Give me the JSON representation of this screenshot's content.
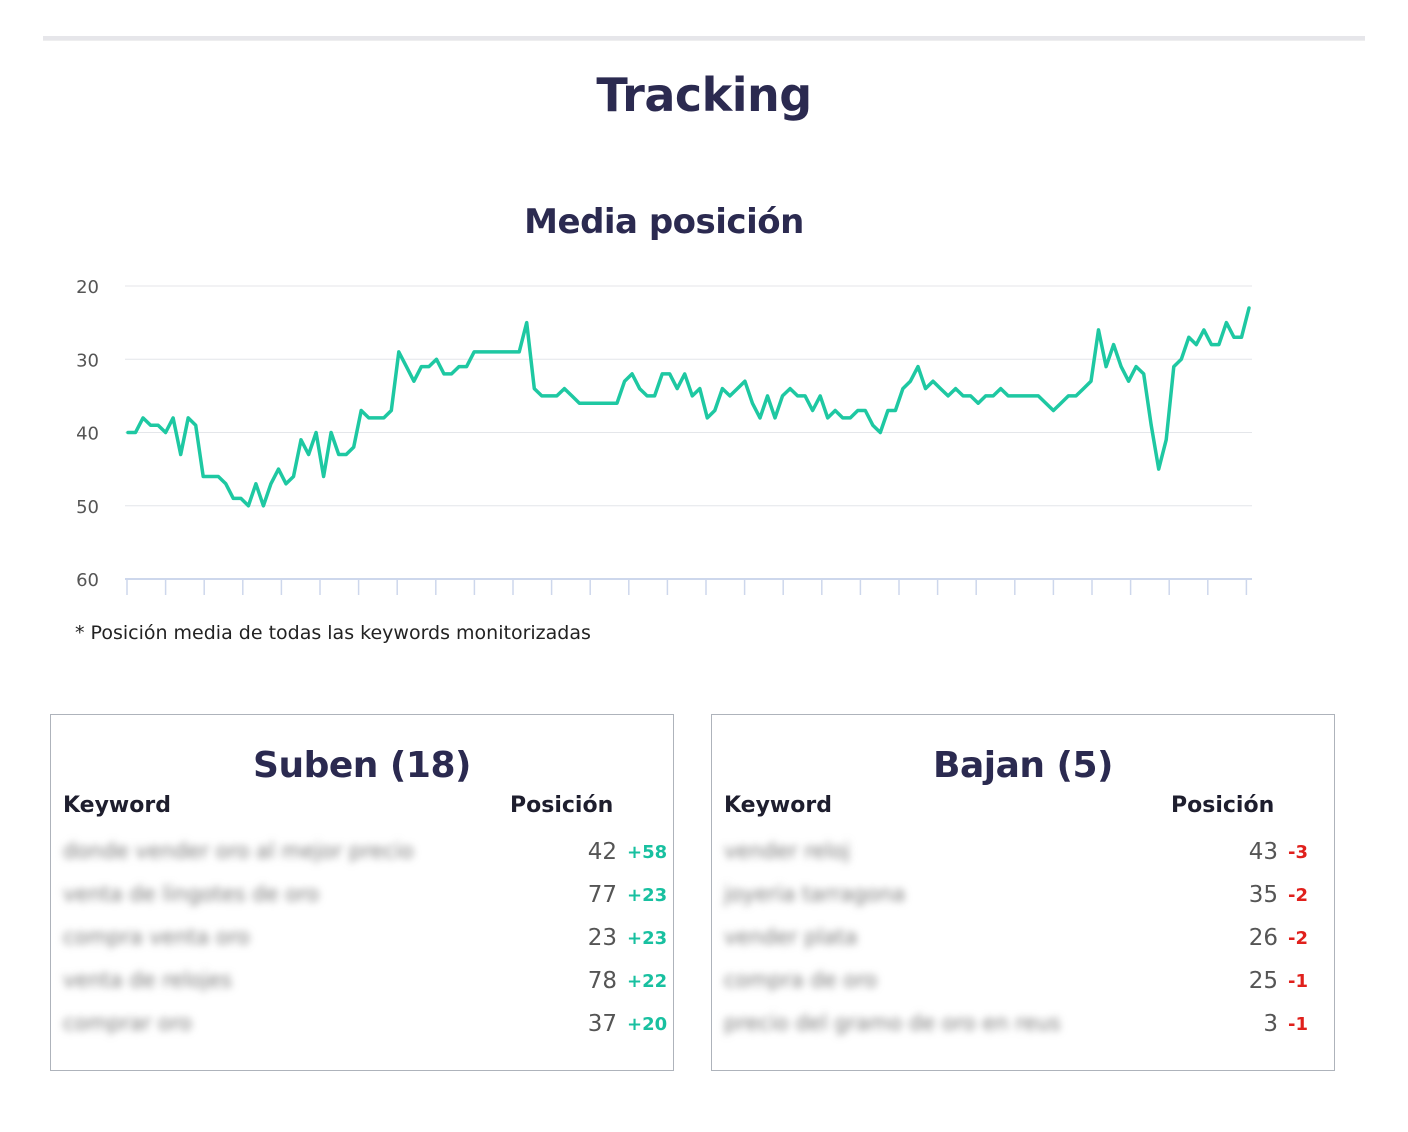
{
  "page": {
    "title": "Tracking"
  },
  "chart_section": {
    "title": "Media posición",
    "footnote": "* Posición media de todas las keywords monitorizadas"
  },
  "colors": {
    "line": "#1ec8a2",
    "up": "#18c0a0",
    "down": "#e0201c",
    "heading": "#2b2a50"
  },
  "chart_data": {
    "type": "line",
    "title": "Media posición",
    "y_ticks": [
      "20",
      "30",
      "40",
      "50",
      "60"
    ],
    "ylim": [
      20,
      60
    ],
    "y_inverted": true,
    "grid": true,
    "series": [
      {
        "values": [
          40,
          40,
          38,
          39,
          39,
          40,
          38,
          43,
          38,
          39,
          46,
          46,
          46,
          47,
          49,
          49,
          50,
          47,
          50,
          47,
          45,
          47,
          46,
          41,
          43,
          40,
          46,
          40,
          43,
          43,
          42,
          37,
          38,
          38,
          38,
          37,
          29,
          31,
          33,
          31,
          31,
          30,
          32,
          32,
          31,
          31,
          29,
          29,
          29,
          29,
          29,
          29,
          29,
          25,
          34,
          35,
          35,
          35,
          34,
          35,
          36,
          36,
          36,
          36,
          36,
          36,
          33,
          32,
          34,
          35,
          35,
          32,
          32,
          34,
          32,
          35,
          34,
          38,
          37,
          34,
          35,
          34,
          33,
          36,
          38,
          35,
          38,
          35,
          34,
          35,
          35,
          37,
          35,
          38,
          37,
          38,
          38,
          37,
          37,
          39,
          40,
          37,
          37,
          34,
          33,
          31,
          34,
          33,
          34,
          35,
          34,
          35,
          35,
          36,
          35,
          35,
          34,
          35,
          35,
          35,
          35,
          35,
          36,
          37,
          36,
          35,
          35,
          34,
          33,
          26,
          31,
          28,
          31,
          33,
          31,
          32,
          39,
          45,
          41,
          31,
          30,
          27,
          28,
          26,
          28,
          28,
          25,
          27,
          27,
          23
        ]
      }
    ]
  },
  "suben": {
    "title": "Suben (18)",
    "col_keyword": "Keyword",
    "col_position": "Posición",
    "rows": [
      {
        "keyword": "donde vender oro al mejor precio",
        "position": "42",
        "delta": "+58"
      },
      {
        "keyword": "venta de lingotes de oro",
        "position": "77",
        "delta": "+23"
      },
      {
        "keyword": "compra venta oro",
        "position": "23",
        "delta": "+23"
      },
      {
        "keyword": "venta de relojes",
        "position": "78",
        "delta": "+22"
      },
      {
        "keyword": "comprar oro",
        "position": "37",
        "delta": "+20"
      }
    ]
  },
  "bajan": {
    "title": "Bajan (5)",
    "col_keyword": "Keyword",
    "col_position": "Posición",
    "rows": [
      {
        "keyword": "vender reloj",
        "position": "43",
        "delta": "-3"
      },
      {
        "keyword": "joyeria tarragona",
        "position": "35",
        "delta": "-2"
      },
      {
        "keyword": "vender plata",
        "position": "26",
        "delta": "-2"
      },
      {
        "keyword": "compra de oro",
        "position": "25",
        "delta": "-1"
      },
      {
        "keyword": "precio del gramo de oro en reus",
        "position": "3",
        "delta": "-1"
      }
    ]
  }
}
